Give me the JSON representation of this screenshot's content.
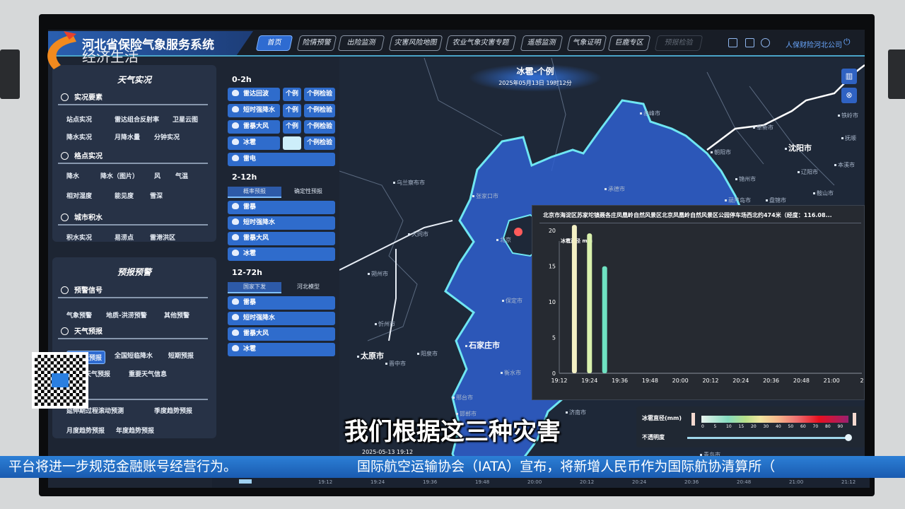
{
  "header": {
    "title": "河北省保险气象服务系统",
    "nav": [
      "首页",
      "险情预警",
      "出险监测",
      "灾害风险地图",
      "农业气象灾害专题",
      "遥感监测",
      "气象证明",
      "巨鹿专区",
      "预报检验"
    ],
    "active_nav": "首页",
    "user": "人保财险河北公司",
    "icons": [
      "report-icon",
      "data-icon",
      "gear-icon",
      "power-icon"
    ]
  },
  "left_panel": {
    "weather_live": {
      "title": "天气实况",
      "sections": [
        {
          "title": "实况要素",
          "items": [
            "站点实况",
            "雷达组合反射率",
            "卫星云图",
            "降水实况",
            "月降水量",
            "分钟实况"
          ]
        },
        {
          "title": "格点实况",
          "items": [
            "降水",
            "降水（图片）",
            "风",
            "气温",
            "相对湿度",
            "能见度",
            "雪深"
          ]
        },
        {
          "title": "城市积水",
          "items": [
            "积水实况",
            "易涝点",
            "雷港洪区"
          ]
        }
      ]
    },
    "forecast_warning": {
      "title": "预报预警",
      "sections": [
        {
          "title": "预警信号",
          "items": [
            "气象预警",
            "地质-洪涝预警",
            "其他预警"
          ]
        },
        {
          "title": "天气预报",
          "items": [
            "分钟级预报",
            "全国短临降水",
            "短期预报",
            "天气预报",
            "重要天气信息"
          ]
        },
        {
          "title": "预测",
          "items": [
            "延伸期过程滚动预测",
            "月度趋势预报",
            "季度趋势预报",
            "年度趋势预报"
          ]
        }
      ]
    }
  },
  "mid_panel": {
    "g0": {
      "label": "0-2h",
      "rows": [
        {
          "name": "雷达回波",
          "a": "个例",
          "b": "个例检验"
        },
        {
          "name": "短时强降水",
          "a": "个例",
          "b": "个例检验"
        },
        {
          "name": "雷暴大风",
          "a": "个例",
          "b": "个例检验"
        },
        {
          "name": "冰雹",
          "a": "个例",
          "b": "个例检验"
        },
        {
          "name": "雷电"
        }
      ]
    },
    "g1": {
      "label": "2-12h",
      "tabs": [
        "概率预报",
        "确定性预报"
      ],
      "items": [
        "雷暴",
        "短时强降水",
        "雷暴大风",
        "冰雹"
      ]
    },
    "g2": {
      "label": "12-72h",
      "tabs": [
        "国家下发",
        "河北模型"
      ],
      "items": [
        "雷暴",
        "短时强降水",
        "雷暴大风",
        "冰雹"
      ]
    }
  },
  "map": {
    "title": "冰雹-个例",
    "datetime": "2025年05月13日 19时12分",
    "cities": [
      "乌兰察布市",
      "张家口市",
      "大同市",
      "朔州市",
      "忻州市",
      "太原市",
      "晋中市",
      "阳泉市",
      "石家庄市",
      "保定市",
      "衡水市",
      "邢台市",
      "邯郸市",
      "承德市",
      "赤峰市",
      "朝阳市",
      "阜新市",
      "沈阳市",
      "锦州市",
      "葫芦岛市",
      "盘锦市",
      "辽阳市",
      "本溪市",
      "鞍山市",
      "铁岭市",
      "抚顺",
      "济南市",
      "青岛市",
      "北京"
    ],
    "timestamp": "2025-05-13 19:12"
  },
  "popup": {
    "location": "北京市海淀区苏家坨镇聂各庄凤凰岭自然风景区北京凤凰岭自然风景区公园停车场西北约474米（经度：116.08..."
  },
  "chart_data": {
    "type": "bar",
    "ylabel": "冰雹直径 mm",
    "categories": [
      "19:18",
      "19:24",
      "19:30"
    ],
    "values": [
      20.8,
      19.6,
      15
    ],
    "colors": [
      "#f4f0c4",
      "#daf2ae",
      "#6fe2c2"
    ],
    "xticks": [
      "19:12",
      "19:24",
      "19:36",
      "19:48",
      "20:00",
      "20:12",
      "20:24",
      "20:36",
      "20:48",
      "21:00",
      "2"
    ],
    "xlim": [
      "19:12",
      "21:12"
    ],
    "yticks": [
      0,
      5,
      10,
      15,
      20
    ],
    "ylim": [
      0,
      21.5
    ],
    "grid": false
  },
  "legend": {
    "label": "冰雹直径(mm)",
    "ticks": [
      "0",
      "5",
      "10",
      "15",
      "20",
      "30",
      "40",
      "50",
      "60",
      "70",
      "80",
      "90"
    ],
    "opacity_label": "不透明度",
    "opacity": 1.0
  },
  "timeline": {
    "ticks": [
      "19:12",
      "19:24",
      "19:36",
      "19:48",
      "20:00",
      "20:12",
      "20:24",
      "20:36",
      "20:48",
      "21:00",
      "21:12"
    ]
  },
  "broadcast": {
    "channel_logo": "经济生活",
    "subtitle": "我们根据这三种灾害",
    "ticker": [
      "平台将进一步规范金融账号经营行为。",
      "国际航空运输协会（IATA）宣布，将新增人民币作为国际航协清算所（"
    ]
  }
}
